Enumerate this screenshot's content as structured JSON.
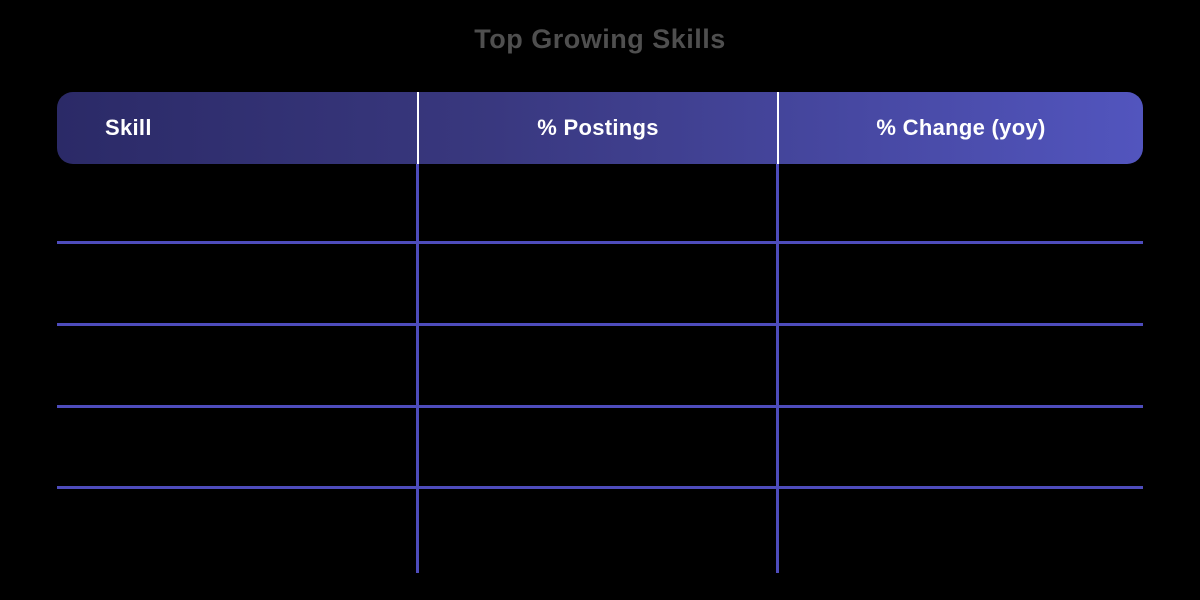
{
  "page": {
    "background_color": "#000000"
  },
  "title": {
    "text": "Top Growing Skills",
    "color": "#4F4F4F"
  },
  "table": {
    "header": {
      "columns": [
        {
          "label": "Skill",
          "align": "left"
        },
        {
          "label": "% Postings",
          "align": "center"
        },
        {
          "label": "% Change (yoy)",
          "align": "center"
        }
      ],
      "gradient_from": "#2B2A67",
      "gradient_to": "#5255BE",
      "text_color": "#FFFFFF",
      "separator_color": "#FFFFFF"
    },
    "body": {
      "grid_line_color": "#4E4CBC",
      "row_count": 5,
      "rows": [
        [
          "",
          "",
          ""
        ],
        [
          "",
          "",
          ""
        ],
        [
          "",
          "",
          ""
        ],
        [
          "",
          "",
          ""
        ],
        [
          "",
          "",
          ""
        ]
      ]
    }
  },
  "chart_data": {
    "type": "table",
    "title": "Top Growing Skills",
    "columns": [
      "Skill",
      "% Postings",
      "% Change (yoy)"
    ],
    "rows": [
      [
        "",
        "",
        ""
      ],
      [
        "",
        "",
        ""
      ],
      [
        "",
        "",
        ""
      ],
      [
        "",
        "",
        ""
      ],
      [
        "",
        "",
        ""
      ]
    ]
  }
}
